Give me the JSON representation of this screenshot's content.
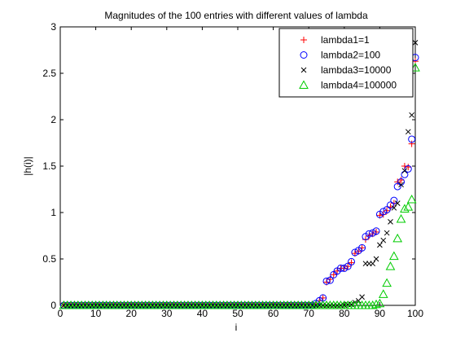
{
  "chart_data": {
    "type": "scatter",
    "title": "Magnitudes of the 100 entries with different values of lambda",
    "xlabel": "i",
    "ylabel": "|h(i)|",
    "xlim": [
      0,
      100
    ],
    "ylim": [
      0,
      3
    ],
    "xticks": [
      "0",
      "10",
      "20",
      "30",
      "40",
      "50",
      "60",
      "70",
      "80",
      "90",
      "100"
    ],
    "yticks": [
      "0",
      "0.5",
      "1",
      "1.5",
      "2",
      "2.5",
      "3"
    ],
    "grid": false,
    "legend_position": "top-right",
    "series": [
      {
        "name": "lambda1=1",
        "marker": "plus",
        "color": "#ff0000",
        "x": [
          1,
          2,
          3,
          4,
          5,
          6,
          7,
          8,
          9,
          10,
          11,
          12,
          13,
          14,
          15,
          16,
          17,
          18,
          19,
          20,
          21,
          22,
          23,
          24,
          25,
          26,
          27,
          28,
          29,
          30,
          31,
          32,
          33,
          34,
          35,
          36,
          37,
          38,
          39,
          40,
          41,
          42,
          43,
          44,
          45,
          46,
          47,
          48,
          49,
          50,
          51,
          52,
          53,
          54,
          55,
          56,
          57,
          58,
          59,
          60,
          61,
          62,
          63,
          64,
          65,
          66,
          67,
          68,
          69,
          70,
          71,
          72,
          73,
          74,
          75,
          76,
          77,
          78,
          79,
          80,
          81,
          82,
          83,
          84,
          85,
          86,
          87,
          88,
          89,
          90,
          91,
          92,
          93,
          94,
          95,
          96,
          97,
          98,
          99,
          100
        ],
        "y": [
          0,
          0,
          0,
          0,
          0,
          0,
          0,
          0,
          0,
          0,
          0,
          0,
          0,
          0,
          0,
          0,
          0,
          0,
          0,
          0,
          0,
          0,
          0,
          0,
          0,
          0,
          0,
          0,
          0,
          0,
          0,
          0,
          0,
          0,
          0,
          0,
          0,
          0,
          0,
          0,
          0,
          0,
          0,
          0,
          0,
          0,
          0,
          0,
          0,
          0,
          0,
          0,
          0,
          0,
          0,
          0,
          0,
          0,
          0,
          0,
          0,
          0,
          0,
          0,
          0,
          0,
          0,
          0,
          0,
          0,
          0,
          0.01,
          0.05,
          0.08,
          0.25,
          0.28,
          0.33,
          0.37,
          0.4,
          0.4,
          0.42,
          0.46,
          0.56,
          0.58,
          0.62,
          0.71,
          0.75,
          0.77,
          0.79,
          0.97,
          0.98,
          1.02,
          1.06,
          1.1,
          1.33,
          1.35,
          1.5,
          1.49,
          1.74,
          2.63
        ]
      },
      {
        "name": "lambda2=100",
        "marker": "circle",
        "color": "#0000ff",
        "x": [
          1,
          2,
          3,
          4,
          5,
          6,
          7,
          8,
          9,
          10,
          11,
          12,
          13,
          14,
          15,
          16,
          17,
          18,
          19,
          20,
          21,
          22,
          23,
          24,
          25,
          26,
          27,
          28,
          29,
          30,
          31,
          32,
          33,
          34,
          35,
          36,
          37,
          38,
          39,
          40,
          41,
          42,
          43,
          44,
          45,
          46,
          47,
          48,
          49,
          50,
          51,
          52,
          53,
          54,
          55,
          56,
          57,
          58,
          59,
          60,
          61,
          62,
          63,
          64,
          65,
          66,
          67,
          68,
          69,
          70,
          71,
          72,
          73,
          74,
          75,
          76,
          77,
          78,
          79,
          80,
          81,
          82,
          83,
          84,
          85,
          86,
          87,
          88,
          89,
          90,
          91,
          92,
          93,
          94,
          95,
          96,
          97,
          98,
          99,
          100
        ],
        "y": [
          0,
          0,
          0,
          0,
          0,
          0,
          0,
          0,
          0,
          0,
          0,
          0,
          0,
          0,
          0,
          0,
          0,
          0,
          0,
          0,
          0,
          0,
          0,
          0,
          0,
          0,
          0,
          0,
          0,
          0,
          0,
          0,
          0,
          0,
          0,
          0,
          0,
          0,
          0,
          0,
          0,
          0,
          0,
          0,
          0,
          0,
          0,
          0,
          0,
          0,
          0,
          0,
          0,
          0,
          0,
          0,
          0,
          0,
          0,
          0,
          0,
          0,
          0,
          0,
          0,
          0,
          0,
          0,
          0,
          0,
          0,
          0.02,
          0.05,
          0.08,
          0.26,
          0.27,
          0.33,
          0.37,
          0.4,
          0.4,
          0.42,
          0.47,
          0.57,
          0.59,
          0.62,
          0.74,
          0.77,
          0.78,
          0.8,
          0.98,
          1.01,
          1.03,
          1.08,
          1.13,
          1.28,
          1.33,
          1.41,
          1.47,
          1.79,
          2.67
        ]
      },
      {
        "name": "lambda3=10000",
        "marker": "x",
        "color": "#000000",
        "x": [
          1,
          2,
          3,
          4,
          5,
          6,
          7,
          8,
          9,
          10,
          11,
          12,
          13,
          14,
          15,
          16,
          17,
          18,
          19,
          20,
          21,
          22,
          23,
          24,
          25,
          26,
          27,
          28,
          29,
          30,
          31,
          32,
          33,
          34,
          35,
          36,
          37,
          38,
          39,
          40,
          41,
          42,
          43,
          44,
          45,
          46,
          47,
          48,
          49,
          50,
          51,
          52,
          53,
          54,
          55,
          56,
          57,
          58,
          59,
          60,
          61,
          62,
          63,
          64,
          65,
          66,
          67,
          68,
          69,
          70,
          71,
          72,
          73,
          74,
          75,
          76,
          77,
          78,
          79,
          80,
          81,
          82,
          83,
          84,
          85,
          86,
          87,
          88,
          89,
          90,
          91,
          92,
          93,
          94,
          95,
          96,
          97,
          98,
          99,
          100
        ],
        "y": [
          0,
          0,
          0,
          0,
          0,
          0,
          0,
          0,
          0,
          0,
          0,
          0,
          0,
          0,
          0,
          0,
          0,
          0,
          0,
          0,
          0,
          0,
          0,
          0,
          0,
          0,
          0,
          0,
          0,
          0,
          0,
          0,
          0,
          0,
          0,
          0,
          0,
          0,
          0,
          0,
          0,
          0,
          0,
          0,
          0,
          0,
          0,
          0,
          0,
          0,
          0,
          0,
          0,
          0,
          0,
          0,
          0,
          0,
          0,
          0,
          0,
          0,
          0,
          0,
          0,
          0,
          0,
          0,
          0,
          0,
          0,
          0,
          0,
          0,
          0,
          0,
          0,
          0,
          0,
          0,
          0.01,
          0.01,
          0.03,
          0.05,
          0.09,
          0.45,
          0.45,
          0.45,
          0.5,
          0.65,
          0.7,
          0.78,
          0.9,
          1.05,
          1.1,
          1.3,
          1.45,
          1.87,
          2.05,
          2.83
        ]
      },
      {
        "name": "lambda4=100000",
        "marker": "triangle",
        "color": "#00cc00",
        "x": [
          1,
          2,
          3,
          4,
          5,
          6,
          7,
          8,
          9,
          10,
          11,
          12,
          13,
          14,
          15,
          16,
          17,
          18,
          19,
          20,
          21,
          22,
          23,
          24,
          25,
          26,
          27,
          28,
          29,
          30,
          31,
          32,
          33,
          34,
          35,
          36,
          37,
          38,
          39,
          40,
          41,
          42,
          43,
          44,
          45,
          46,
          47,
          48,
          49,
          50,
          51,
          52,
          53,
          54,
          55,
          56,
          57,
          58,
          59,
          60,
          61,
          62,
          63,
          64,
          65,
          66,
          67,
          68,
          69,
          70,
          71,
          72,
          73,
          74,
          75,
          76,
          77,
          78,
          79,
          80,
          81,
          82,
          83,
          84,
          85,
          86,
          87,
          88,
          89,
          90,
          91,
          92,
          93,
          94,
          95,
          96,
          97,
          98,
          99,
          100
        ],
        "y": [
          0,
          0,
          0,
          0,
          0,
          0,
          0,
          0,
          0,
          0,
          0,
          0,
          0,
          0,
          0,
          0,
          0,
          0,
          0,
          0,
          0,
          0,
          0,
          0,
          0,
          0,
          0,
          0,
          0,
          0,
          0,
          0,
          0,
          0,
          0,
          0,
          0,
          0,
          0,
          0,
          0,
          0,
          0,
          0,
          0,
          0,
          0,
          0,
          0,
          0,
          0,
          0,
          0,
          0,
          0,
          0,
          0,
          0,
          0,
          0,
          0,
          0,
          0,
          0,
          0,
          0,
          0,
          0,
          0,
          0,
          0,
          0,
          0,
          0,
          0,
          0,
          0,
          0,
          0,
          0,
          0,
          0,
          0,
          0,
          0,
          0,
          0,
          0,
          0.01,
          0.02,
          0.12,
          0.24,
          0.42,
          0.53,
          0.72,
          0.93,
          1.04,
          1.06,
          1.14,
          2.56
        ]
      }
    ]
  }
}
